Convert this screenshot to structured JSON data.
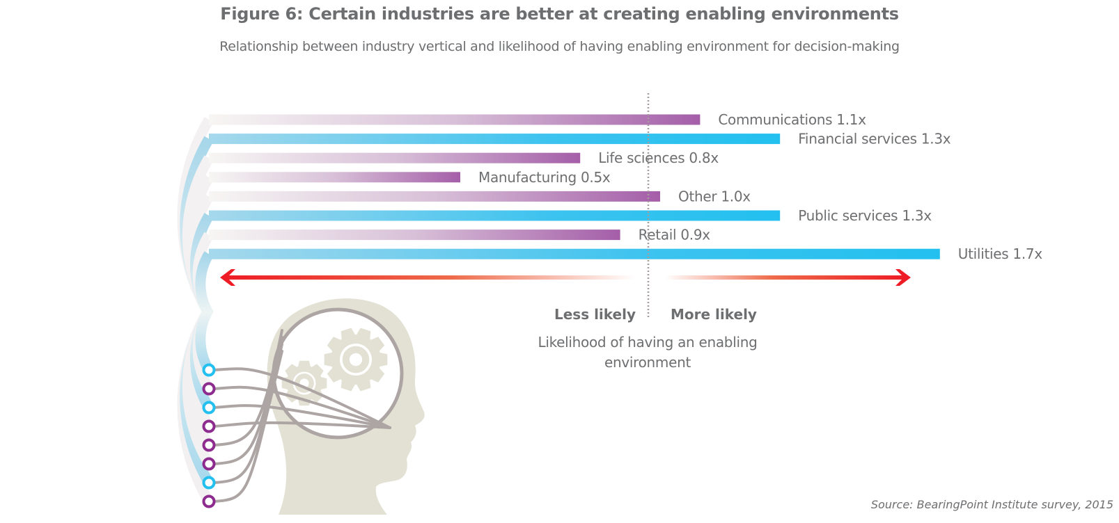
{
  "chart_data": {
    "type": "bar",
    "orientation": "horizontal",
    "title": "Figure 6: Certain industries are better at creating enabling environments",
    "subtitle": "Relationship between industry vertical and likelihood of having enabling environment for decision-making",
    "xlabel": "Likelihood of having an enabling environment",
    "reference_value": 1.0,
    "direction_labels": {
      "less": "Less likely",
      "more": "More likely"
    },
    "categories": [
      "Communications",
      "Financial services",
      "Life sciences",
      "Manufacturing",
      "Other",
      "Public services",
      "Retail",
      "Utilities"
    ],
    "values": [
      1.1,
      1.3,
      0.8,
      0.5,
      1.0,
      1.3,
      0.9,
      1.7
    ],
    "value_labels": [
      "1.1x",
      "1.3x",
      "0.8x",
      "0.5x",
      "1.0x",
      "1.3x",
      "0.9x",
      "1.7x"
    ],
    "highlight": [
      false,
      true,
      false,
      false,
      false,
      true,
      false,
      true
    ],
    "source": "Source: BearingPoint Institute survey, 2015"
  },
  "colors": {
    "purple": "#a45ea8",
    "cyan": "#23c0ef",
    "circle_purple": "#8e2b8e",
    "circle_cyan": "#23c0ef",
    "arrow_red": "#ee1c25",
    "text": "#6d6e70",
    "head": "#e3e1d4",
    "wire": "#ada5a3"
  }
}
